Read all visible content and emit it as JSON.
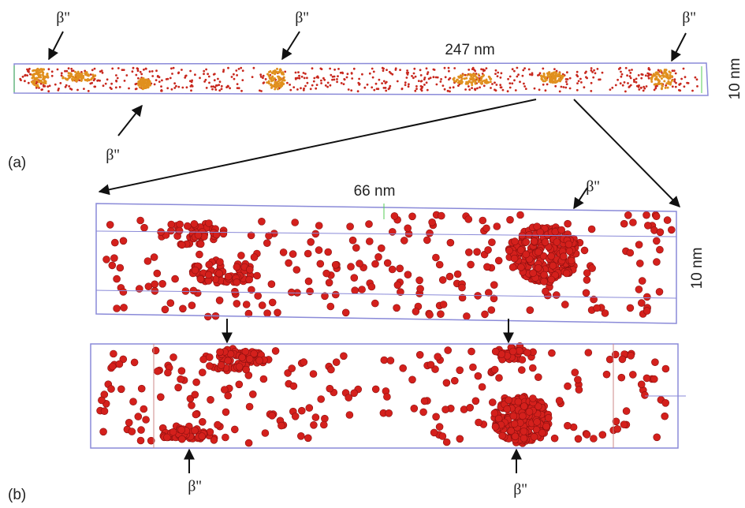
{
  "panel_a": {
    "label": "(a)",
    "length": "247 nm",
    "width": "10 nm",
    "precipitate_labels": [
      "β''",
      "β''",
      "β''",
      "β''"
    ]
  },
  "panel_b": {
    "label": "(b)",
    "length": "66 nm",
    "width": "10 nm",
    "precipitate_labels": [
      "β''",
      "β''",
      "β''"
    ]
  }
}
